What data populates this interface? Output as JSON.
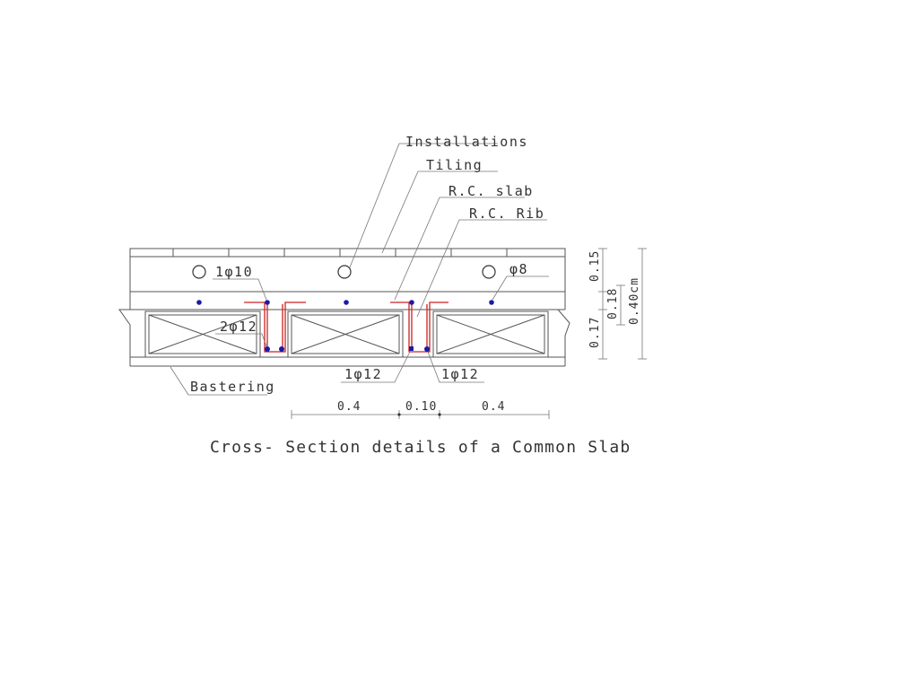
{
  "labels": {
    "installations": "Installations",
    "tiling": "Tiling",
    "rc_slab": "R.C.  slab",
    "rc_rib": "R.C.  Rib",
    "bar_1_10": "1φ10",
    "bar_2_12": "2φ12",
    "bar_phi8": "φ8",
    "bar_1_12_left": "1φ12",
    "bar_1_12_right": "1φ12",
    "plastering": "Bastering"
  },
  "dimensions": {
    "block_width_left": "0.4",
    "rib_width": "0.10",
    "block_width_right": "0.4",
    "screed_thickness": "0.15",
    "slab_thickness": "0.18",
    "block_height": "0.17",
    "total_thickness": "0.40cm"
  },
  "caption": "Cross- Section details of a Common Slab",
  "colors": {
    "drawing_line": "#555555",
    "reinforcement": "#cc2222",
    "rebar_dot": "#1a1aa8"
  }
}
